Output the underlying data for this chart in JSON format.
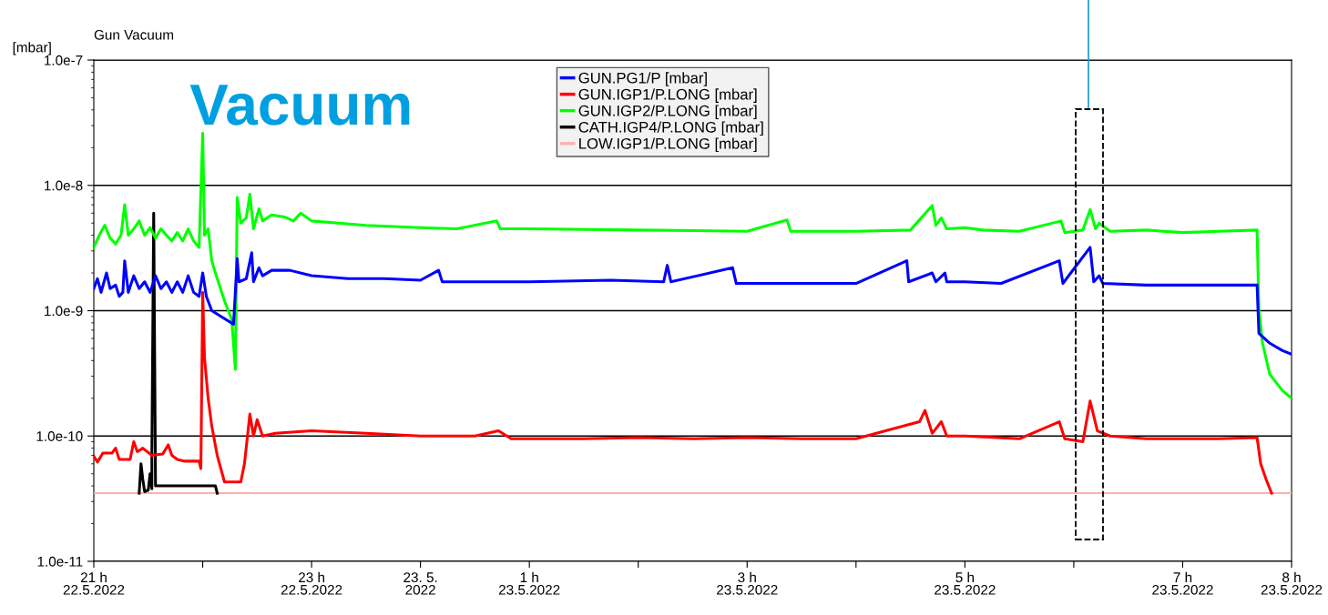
{
  "chart_data": {
    "type": "line",
    "title": "Gun Vacuum",
    "ylabel": "[mbar]",
    "annotations": [
      "Vacuum"
    ],
    "log": "y",
    "grid": "y",
    "legend": "top",
    "marker": "none",
    "line_style": "solid",
    "xlim": [
      "2022-05-22T21:00",
      "2022-05-23T08:00"
    ],
    "xticks": [
      {
        "value": "2022-05-22T21:00",
        "label": "21 h\n22.5.2022"
      },
      {
        "value": "2022-05-22T22:00",
        "label": null
      },
      {
        "value": "2022-05-22T23:00",
        "label": "23 h\n22.5.2022"
      },
      {
        "value": "2022-05-23T00:00",
        "label": "23. 5.\n2022"
      },
      {
        "value": "2022-05-23T01:00",
        "label": "1 h\n23.5.2022"
      },
      {
        "value": "2022-05-23T02:00",
        "label": null
      },
      {
        "value": "2022-05-23T03:00",
        "label": "3 h\n23.5.2022"
      },
      {
        "value": "2022-05-23T04:00",
        "label": null
      },
      {
        "value": "2022-05-23T05:00",
        "label": "5 h\n23.5.2022"
      },
      {
        "value": "2022-05-23T06:00",
        "label": null
      },
      {
        "value": "2022-05-23T07:00",
        "label": "7 h\n23.5.2022"
      },
      {
        "value": "2022-05-23T08:00",
        "label": "8 h\n23.5.2022"
      }
    ],
    "ylim": [
      1e-11,
      1e-07
    ],
    "yticks": [
      {
        "value": 1e-11,
        "label": "1.0e-11"
      },
      {
        "value": 1e-10,
        "label": "1.0e-10"
      },
      {
        "value": 1e-09,
        "label": "1.0e-9"
      },
      {
        "value": 1e-08,
        "label": "1.0e-8"
      },
      {
        "value": 1e-07,
        "label": "1.0e-7"
      }
    ],
    "series": [
      {
        "name": "GUN.PG1/P [mbar]",
        "color": "#0000ff",
        "x": [
          "2022-05-22T21:00",
          "2022-05-22T21:02",
          "2022-05-22T21:04",
          "2022-05-22T21:07",
          "2022-05-22T21:09",
          "2022-05-22T21:12",
          "2022-05-22T21:14",
          "2022-05-22T21:16",
          "2022-05-22T21:17",
          "2022-05-22T21:19",
          "2022-05-22T21:22",
          "2022-05-22T21:25",
          "2022-05-22T21:28",
          "2022-05-22T21:31",
          "2022-05-22T21:34",
          "2022-05-22T21:37",
          "2022-05-22T21:40",
          "2022-05-22T21:43",
          "2022-05-22T21:46",
          "2022-05-22T21:49",
          "2022-05-22T21:52",
          "2022-05-22T21:55",
          "2022-05-22T21:58",
          "2022-05-22T22:00",
          "2022-05-22T22:02",
          "2022-05-22T22:05",
          "2022-05-22T22:10",
          "2022-05-22T22:17",
          "2022-05-22T22:19",
          "2022-05-22T22:20",
          "2022-05-22T22:24",
          "2022-05-22T22:27",
          "2022-05-22T22:28",
          "2022-05-22T22:31",
          "2022-05-22T22:33",
          "2022-05-22T22:38",
          "2022-05-22T22:48",
          "2022-05-22T23:00",
          "2022-05-22T23:20",
          "2022-05-22T23:40",
          "2022-05-23T00:00",
          "2022-05-23T00:10",
          "2022-05-23T00:12",
          "2022-05-23T01:00",
          "2022-05-23T01:45",
          "2022-05-23T02:14",
          "2022-05-23T02:16",
          "2022-05-23T02:18",
          "2022-05-23T02:52",
          "2022-05-23T02:54",
          "2022-05-23T03:30",
          "2022-05-23T04:00",
          "2022-05-23T04:28",
          "2022-05-23T04:29",
          "2022-05-23T04:42",
          "2022-05-23T04:44",
          "2022-05-23T04:49",
          "2022-05-23T04:50",
          "2022-05-23T05:00",
          "2022-05-23T05:20",
          "2022-05-23T05:52",
          "2022-05-23T05:54",
          "2022-05-23T06:09",
          "2022-05-23T06:11",
          "2022-05-23T06:14",
          "2022-05-23T06:16",
          "2022-05-23T06:40",
          "2022-05-23T07:00",
          "2022-05-23T07:20",
          "2022-05-23T07:41",
          "2022-05-23T07:42",
          "2022-05-23T07:48",
          "2022-05-23T07:55",
          "2022-05-23T08:00"
        ],
        "values": [
          1.5e-09,
          1.8e-09,
          1.4e-09,
          2e-09,
          1.5e-09,
          1.6e-09,
          1.3e-09,
          1.4e-09,
          2.5e-09,
          1.4e-09,
          1.9e-09,
          1.5e-09,
          1.7e-09,
          1.4e-09,
          1.9e-09,
          1.5e-09,
          1.7e-09,
          1.4e-09,
          1.7e-09,
          1.4e-09,
          1.9e-09,
          1.4e-09,
          1.3e-09,
          2e-09,
          1.3e-09,
          1e-09,
          9e-10,
          7.8e-10,
          2.6e-09,
          1.7e-09,
          1.8e-09,
          2.9e-09,
          1.7e-09,
          2.2e-09,
          1.9e-09,
          2.1e-09,
          2.1e-09,
          1.9e-09,
          1.8e-09,
          1.8e-09,
          1.75e-09,
          2.1e-09,
          1.7e-09,
          1.7e-09,
          1.75e-09,
          1.7e-09,
          2.3e-09,
          1.7e-09,
          2.2e-09,
          1.65e-09,
          1.65e-09,
          1.65e-09,
          2.5e-09,
          1.7e-09,
          2e-09,
          1.7e-09,
          2e-09,
          1.7e-09,
          1.7e-09,
          1.65e-09,
          2.5e-09,
          1.65e-09,
          3.2e-09,
          1.7e-09,
          1.9e-09,
          1.65e-09,
          1.6e-09,
          1.6e-09,
          1.6e-09,
          1.6e-09,
          6.6e-10,
          5.5e-10,
          4.8e-10,
          4.5e-10
        ]
      },
      {
        "name": "GUN.IGP1/P.LONG [mbar]",
        "color": "#ff0000",
        "x": [
          "2022-05-22T21:00",
          "2022-05-22T21:02",
          "2022-05-22T21:05",
          "2022-05-22T21:10",
          "2022-05-22T21:12",
          "2022-05-22T21:14",
          "2022-05-22T21:20",
          "2022-05-22T21:22",
          "2022-05-22T21:24",
          "2022-05-22T21:27",
          "2022-05-22T21:32",
          "2022-05-22T21:38",
          "2022-05-22T21:41",
          "2022-05-22T21:43",
          "2022-05-22T21:46",
          "2022-05-22T21:50",
          "2022-05-22T21:58",
          "2022-05-22T21:59",
          "2022-05-22T22:00",
          "2022-05-22T22:01",
          "2022-05-22T22:03",
          "2022-05-22T22:05",
          "2022-05-22T22:08",
          "2022-05-22T22:12",
          "2022-05-22T22:21",
          "2022-05-22T22:23",
          "2022-05-22T22:26",
          "2022-05-22T22:28",
          "2022-05-22T22:30",
          "2022-05-22T22:33",
          "2022-05-22T22:40",
          "2022-05-22T23:00",
          "2022-05-22T23:30",
          "2022-05-23T00:00",
          "2022-05-23T00:30",
          "2022-05-23T00:43",
          "2022-05-23T00:50",
          "2022-05-23T01:30",
          "2022-05-23T02:00",
          "2022-05-23T02:30",
          "2022-05-23T03:00",
          "2022-05-23T03:30",
          "2022-05-23T04:00",
          "2022-05-23T04:35",
          "2022-05-23T04:38",
          "2022-05-23T04:42",
          "2022-05-23T04:47",
          "2022-05-23T04:50",
          "2022-05-23T05:00",
          "2022-05-23T05:30",
          "2022-05-23T05:52",
          "2022-05-23T05:55",
          "2022-05-23T06:05",
          "2022-05-23T06:09",
          "2022-05-23T06:13",
          "2022-05-23T06:20",
          "2022-05-23T06:40",
          "2022-05-23T07:00",
          "2022-05-23T07:20",
          "2022-05-23T07:41",
          "2022-05-23T07:43",
          "2022-05-23T07:46",
          "2022-05-23T07:49"
        ],
        "values": [
          6.9e-11,
          6.2e-11,
          7.3e-11,
          7.3e-11,
          8e-11,
          6.5e-11,
          6.5e-11,
          9e-11,
          7.5e-11,
          8e-11,
          7e-11,
          7.2e-11,
          8.5e-11,
          7e-11,
          6.5e-11,
          6.3e-11,
          6.3e-11,
          5.5e-11,
          1.4e-09,
          4.2e-10,
          2e-10,
          1.2e-10,
          7e-11,
          4.3e-11,
          4.3e-11,
          6e-11,
          1.5e-10,
          1e-10,
          1.35e-10,
          1e-10,
          1.05e-10,
          1.1e-10,
          1.05e-10,
          1e-10,
          1e-10,
          1.1e-10,
          9.5e-11,
          9.5e-11,
          9.7e-11,
          9.5e-11,
          9.7e-11,
          9.5e-11,
          9.5e-11,
          1.3e-10,
          1.6e-10,
          1.05e-10,
          1.3e-10,
          1e-10,
          1e-10,
          9.5e-11,
          1.3e-10,
          9.5e-11,
          9e-11,
          1.9e-10,
          1.1e-10,
          1e-10,
          9.5e-11,
          9.5e-11,
          9.5e-11,
          9.7e-11,
          6e-11,
          4.5e-11,
          3.5e-11
        ]
      },
      {
        "name": "GUN.IGP2/P.LONG [mbar]",
        "color": "#00ff00",
        "x": [
          "2022-05-22T21:00",
          "2022-05-22T21:03",
          "2022-05-22T21:06",
          "2022-05-22T21:09",
          "2022-05-22T21:12",
          "2022-05-22T21:15",
          "2022-05-22T21:17",
          "2022-05-22T21:19",
          "2022-05-22T21:22",
          "2022-05-22T21:25",
          "2022-05-22T21:28",
          "2022-05-22T21:31",
          "2022-05-22T21:34",
          "2022-05-22T21:37",
          "2022-05-22T21:40",
          "2022-05-22T21:43",
          "2022-05-22T21:46",
          "2022-05-22T21:49",
          "2022-05-22T21:52",
          "2022-05-22T21:55",
          "2022-05-22T21:58",
          "2022-05-22T22:00",
          "2022-05-22T22:01",
          "2022-05-22T22:03",
          "2022-05-22T22:05",
          "2022-05-22T22:08",
          "2022-05-22T22:12",
          "2022-05-22T22:16",
          "2022-05-22T22:18",
          "2022-05-22T22:19",
          "2022-05-22T22:21",
          "2022-05-22T22:24",
          "2022-05-22T22:26",
          "2022-05-22T22:28",
          "2022-05-22T22:31",
          "2022-05-22T22:33",
          "2022-05-22T22:38",
          "2022-05-22T22:45",
          "2022-05-22T22:50",
          "2022-05-22T22:54",
          "2022-05-22T23:00",
          "2022-05-22T23:15",
          "2022-05-22T23:30",
          "2022-05-22T23:45",
          "2022-05-23T00:00",
          "2022-05-23T00:20",
          "2022-05-23T00:42",
          "2022-05-23T00:44",
          "2022-05-23T01:00",
          "2022-05-23T02:00",
          "2022-05-23T03:00",
          "2022-05-23T03:22",
          "2022-05-23T03:24",
          "2022-05-23T04:00",
          "2022-05-23T04:30",
          "2022-05-23T04:42",
          "2022-05-23T04:44",
          "2022-05-23T04:47",
          "2022-05-23T04:50",
          "2022-05-23T05:00",
          "2022-05-23T05:10",
          "2022-05-23T05:30",
          "2022-05-23T05:53",
          "2022-05-23T05:55",
          "2022-05-23T06:05",
          "2022-05-23T06:09",
          "2022-05-23T06:12",
          "2022-05-23T06:14",
          "2022-05-23T06:20",
          "2022-05-23T06:40",
          "2022-05-23T07:00",
          "2022-05-23T07:20",
          "2022-05-23T07:41",
          "2022-05-23T07:42",
          "2022-05-23T07:44",
          "2022-05-23T07:48",
          "2022-05-23T07:55",
          "2022-05-23T08:00"
        ],
        "values": [
          3.2e-09,
          4e-09,
          4.8e-09,
          3.8e-09,
          3.4e-09,
          4e-09,
          7e-09,
          4e-09,
          4.5e-09,
          5.2e-09,
          4e-09,
          4.6e-09,
          3.8e-09,
          4.5e-09,
          4e-09,
          3.6e-09,
          4.2e-09,
          3.6e-09,
          4.5e-09,
          3.6e-09,
          3.2e-09,
          2.6e-08,
          4e-09,
          4.5e-09,
          2.5e-09,
          1.8e-09,
          1.2e-09,
          8.5e-10,
          3.4e-10,
          8e-09,
          5e-09,
          5.5e-09,
          8.5e-09,
          4.5e-09,
          6.5e-09,
          5.2e-09,
          5.8e-09,
          5.6e-09,
          5.2e-09,
          6e-09,
          5.2e-09,
          5e-09,
          4.8e-09,
          4.7e-09,
          4.6e-09,
          4.5e-09,
          5.2e-09,
          4.5e-09,
          4.5e-09,
          4.4e-09,
          4.3e-09,
          5.3e-09,
          4.3e-09,
          4.3e-09,
          4.4e-09,
          6.9e-09,
          4.8e-09,
          5.5e-09,
          4.5e-09,
          4.6e-09,
          4.4e-09,
          4.3e-09,
          5.2e-09,
          4.2e-09,
          4.4e-09,
          6.4e-09,
          4.5e-09,
          5e-09,
          4.3e-09,
          4.4e-09,
          4.2e-09,
          4.3e-09,
          4.4e-09,
          1e-09,
          5.5e-10,
          3.1e-10,
          2.3e-10,
          2e-10
        ]
      },
      {
        "name": "CATH.IGP4/P.LONG [mbar]",
        "color": "#000000",
        "x": [
          "2022-05-22T21:25",
          "2022-05-22T21:26",
          "2022-05-22T21:27",
          "2022-05-22T21:28",
          "2022-05-22T21:30",
          "2022-05-22T21:31",
          "2022-05-22T21:32",
          "2022-05-22T21:32",
          "2022-05-22T21:33",
          "2022-05-22T21:34",
          "2022-05-22T22:07",
          "2022-05-22T22:08"
        ],
        "values": [
          3.5e-11,
          6e-11,
          4.5e-11,
          3.6e-11,
          3.7e-11,
          5e-11,
          3.8e-11,
          7.5e-11,
          6e-09,
          4e-11,
          4e-11,
          3.5e-11
        ]
      },
      {
        "name": "LOW.IGP1/P.LONG [mbar]",
        "color": "#ffb0b0",
        "x": [
          "2022-05-22T21:00",
          "2022-05-23T08:00"
        ],
        "values": [
          3.5e-11,
          3.5e-11
        ]
      }
    ]
  }
}
